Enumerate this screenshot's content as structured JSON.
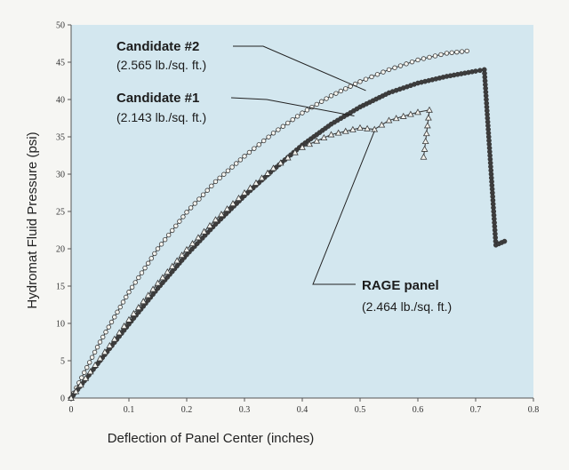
{
  "chart_data": {
    "type": "line",
    "title": "",
    "xlabel": "Deflection of Panel Center (inches)",
    "ylabel": "Hydromat Fluid Pressure (psi)",
    "xlim": [
      0,
      0.8
    ],
    "ylim": [
      0,
      50
    ],
    "x_ticks": [
      "0",
      "0.1",
      "0.2",
      "0.3",
      "0.4",
      "0.5",
      "0.6",
      "0.7",
      "0.8"
    ],
    "y_ticks": [
      "0",
      "5",
      "10",
      "15",
      "20",
      "25",
      "30",
      "35",
      "40",
      "45",
      "50"
    ],
    "grid": false,
    "background_color": "#d3e7ef",
    "colors": {
      "series": "#3a3a3a",
      "text": "#1c1c1c"
    },
    "series": [
      {
        "name": "Candidate #2",
        "marker": "open-circle",
        "x": [
          0,
          0.05,
          0.1,
          0.15,
          0.2,
          0.25,
          0.3,
          0.35,
          0.4,
          0.45,
          0.5,
          0.55,
          0.6,
          0.65,
          0.685
        ],
        "y": [
          0,
          7.5,
          14.2,
          20.0,
          24.9,
          29.0,
          32.4,
          35.5,
          38.2,
          40.5,
          42.4,
          44.0,
          45.3,
          46.2,
          46.5
        ]
      },
      {
        "name": "Candidate #1",
        "marker": "filled-circle",
        "x": [
          0,
          0.05,
          0.1,
          0.15,
          0.2,
          0.25,
          0.3,
          0.35,
          0.4,
          0.45,
          0.5,
          0.55,
          0.6,
          0.65,
          0.7,
          0.715,
          0.735,
          0.75
        ],
        "y": [
          0,
          5.0,
          9.9,
          14.7,
          19.2,
          23.3,
          27.1,
          30.6,
          33.9,
          36.7,
          39.0,
          40.9,
          42.2,
          43.1,
          43.8,
          44.0,
          20.5,
          21.0
        ]
      },
      {
        "name": "RAGE panel",
        "marker": "open-triangle",
        "x": [
          0,
          0.05,
          0.1,
          0.15,
          0.2,
          0.25,
          0.3,
          0.35,
          0.4,
          0.45,
          0.5,
          0.525,
          0.55,
          0.6,
          0.62,
          0.61
        ],
        "y": [
          0,
          5.3,
          10.5,
          15.4,
          19.9,
          23.9,
          27.5,
          30.8,
          33.6,
          35.3,
          36.2,
          36.0,
          37.2,
          38.3,
          38.6,
          32.3
        ]
      }
    ],
    "annotations": [
      {
        "series": "Candidate #2",
        "label": "Candidate  #2",
        "sub": "(2.565 lb./sq. ft.)",
        "target": [
          0.51,
          41.2
        ]
      },
      {
        "series": "Candidate #1",
        "label": "Candidate #1",
        "sub": "(2.143 lb./sq. ft.)",
        "target": [
          0.49,
          37.8
        ]
      },
      {
        "series": "RAGE panel",
        "label": "RAGE panel",
        "sub": "(2.464 lb./sq. ft.)",
        "target": [
          0.525,
          35.8
        ]
      }
    ]
  }
}
